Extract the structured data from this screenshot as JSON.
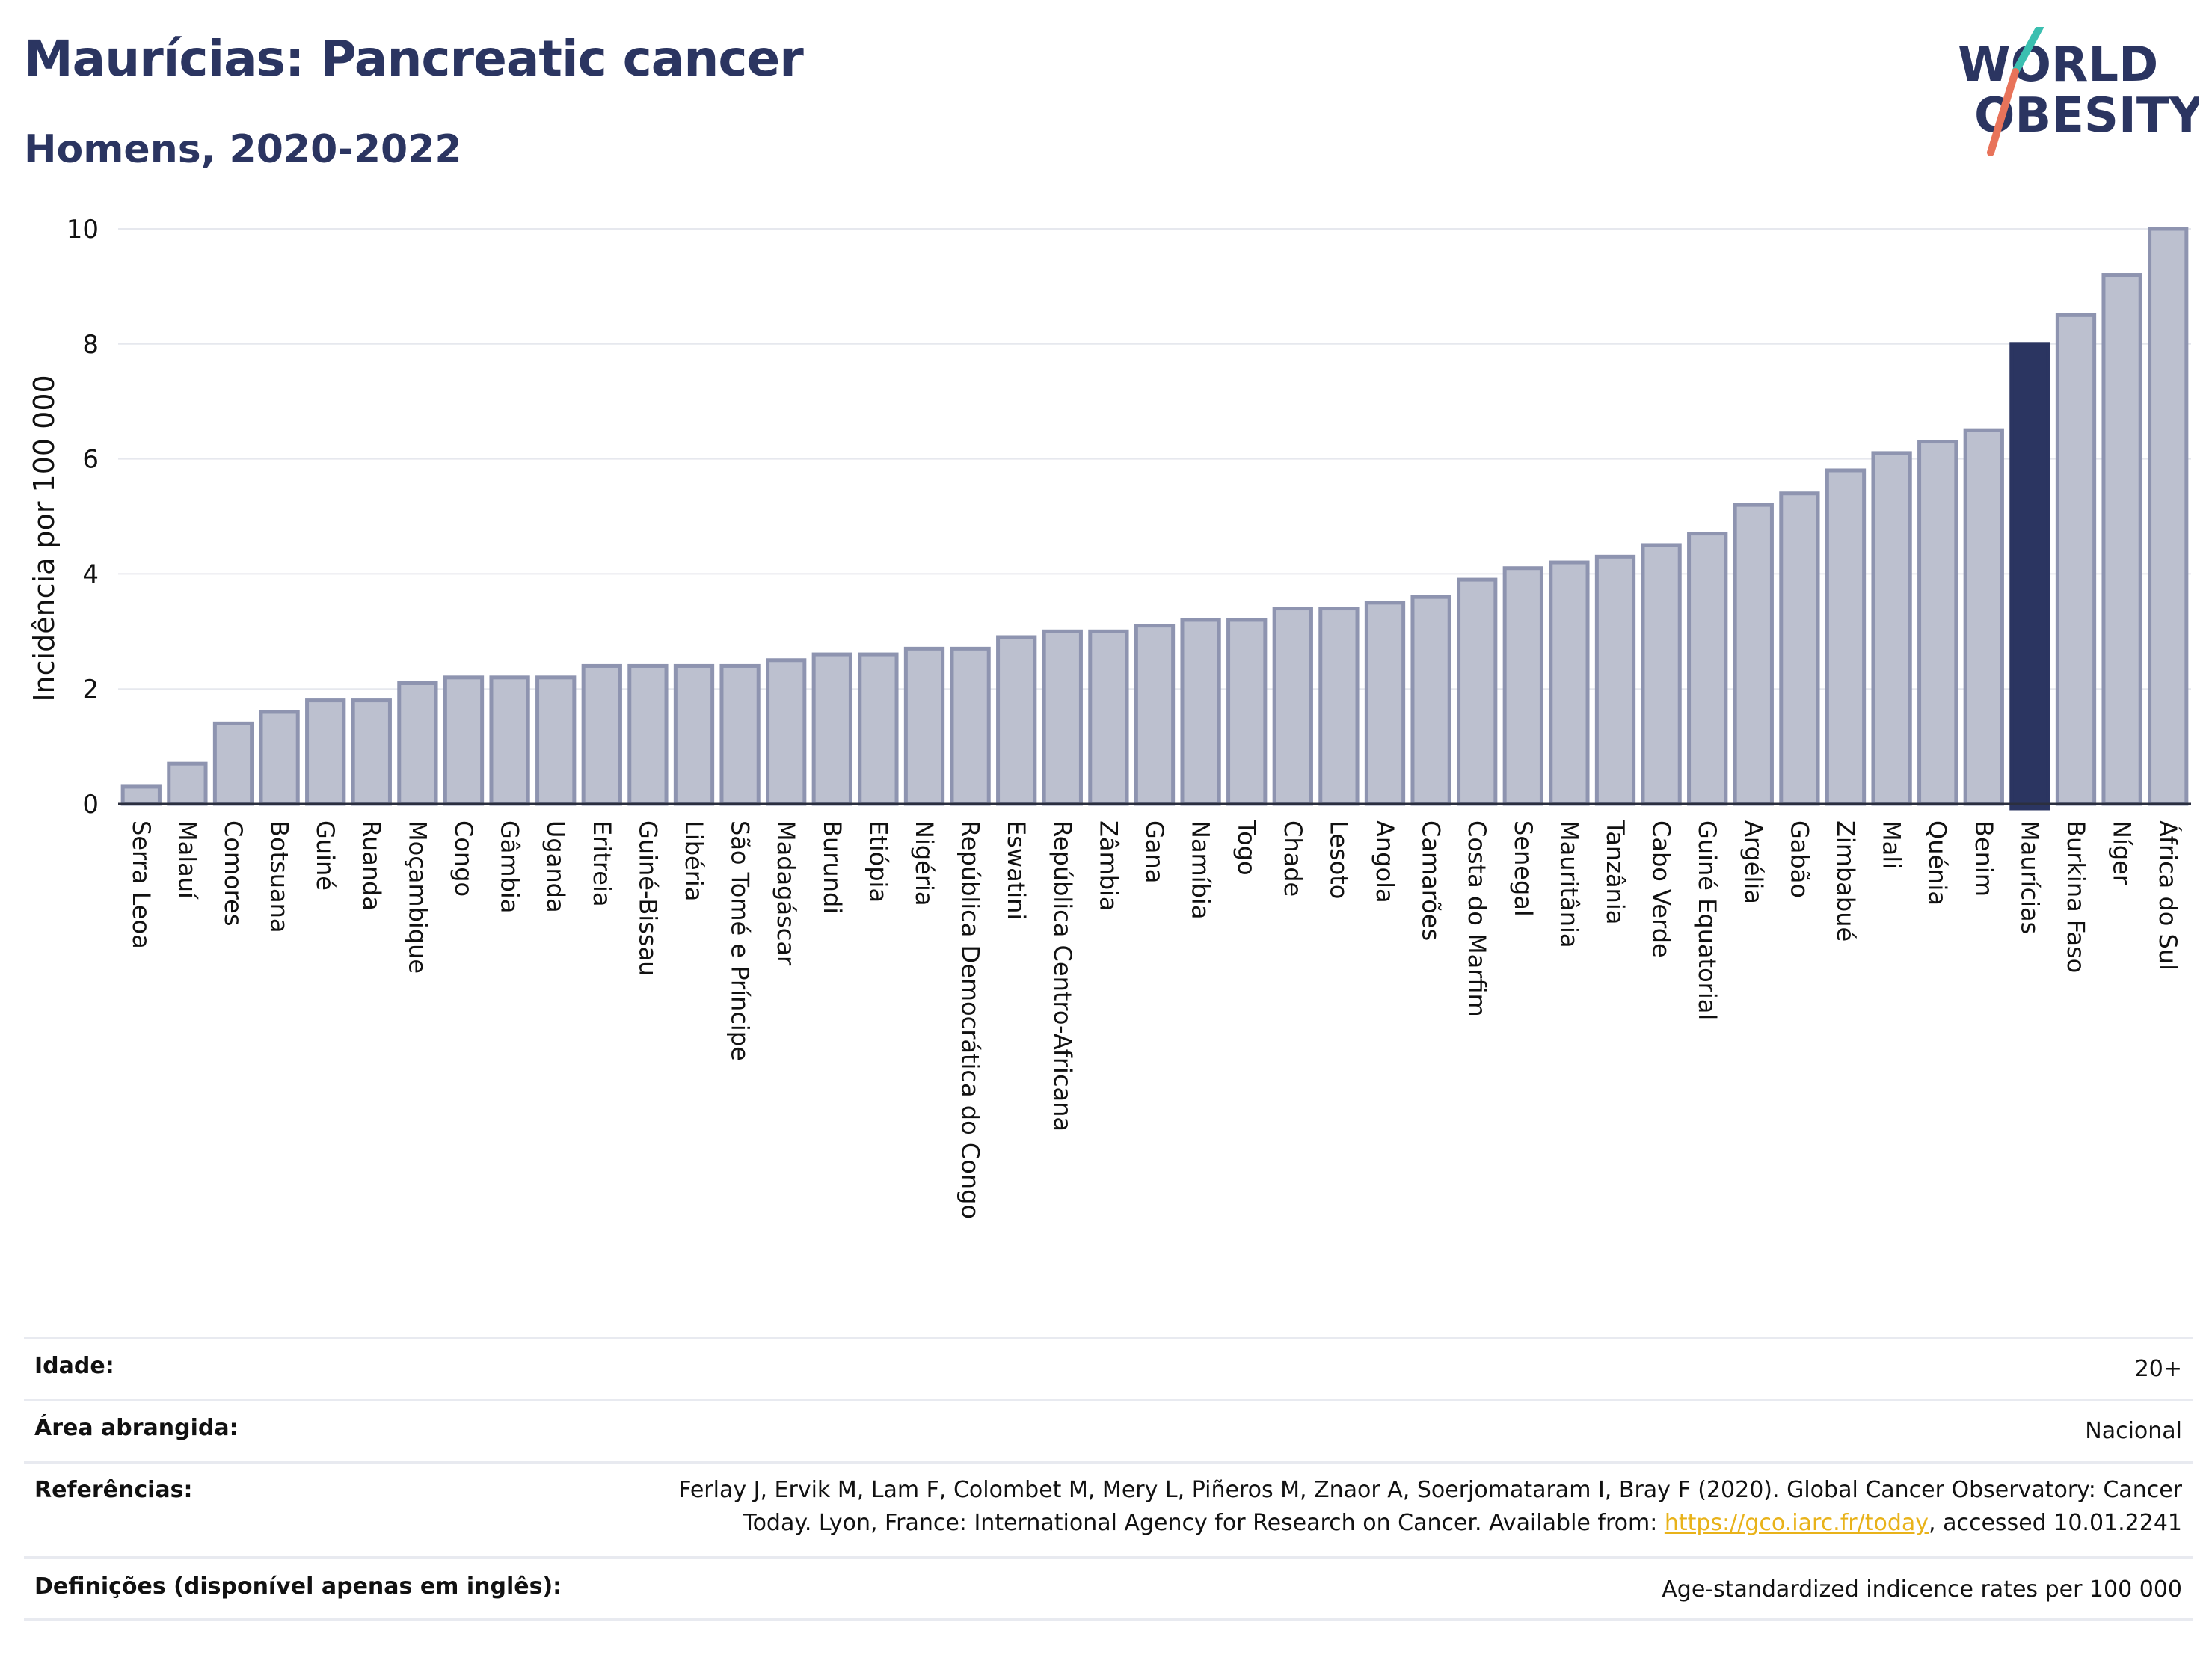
{
  "header": {
    "title": "Maurícias: Pancreatic cancer",
    "subtitle": "Homens, 2020-2022"
  },
  "logo": {
    "line1": "WORLD",
    "line2": "OBESITY",
    "accent_teal": "#3bbfb0",
    "accent_coral": "#e8735a"
  },
  "colors": {
    "bar": "#bcc0cf",
    "bar_stroke": "#8e94b0",
    "highlight": "#2b3561",
    "grid": "#e6e8ee"
  },
  "chart_data": {
    "type": "bar",
    "ylabel": "Incidência por 100 000",
    "xlabel": "",
    "ylim": [
      0,
      10
    ],
    "yticks": [
      0,
      2,
      4,
      6,
      8,
      10
    ],
    "grid": true,
    "highlight": "Maurícias",
    "categories": [
      "Serra Leoa",
      "Malauí",
      "Comores",
      "Botsuana",
      "Guiné",
      "Ruanda",
      "Moçambique",
      "Congo",
      "Gâmbia",
      "Uganda",
      "Eritreia",
      "Guiné-Bissau",
      "Libéria",
      "São Tomé e Príncipe",
      "Madagáscar",
      "Burundi",
      "Etiópia",
      "Nigéria",
      "República Democrática do Congo",
      "Eswatini",
      "República Centro-Africana",
      "Zâmbia",
      "Gana",
      "Namíbia",
      "Togo",
      "Chade",
      "Lesoto",
      "Angola",
      "Camarões",
      "Costa do Marfim",
      "Senegal",
      "Mauritânia",
      "Tanzânia",
      "Cabo Verde",
      "Guiné Equatorial",
      "Argélia",
      "Gabão",
      "Zimbabué",
      "Mali",
      "Quénia",
      "Benim",
      "Maurícias",
      "Burkina Faso",
      "Níger",
      "África do Sul"
    ],
    "values": [
      0.3,
      0.7,
      1.4,
      1.6,
      1.8,
      1.8,
      2.1,
      2.2,
      2.2,
      2.2,
      2.4,
      2.4,
      2.4,
      2.4,
      2.5,
      2.6,
      2.6,
      2.7,
      2.7,
      2.9,
      3.0,
      3.0,
      3.1,
      3.2,
      3.2,
      3.4,
      3.4,
      3.5,
      3.6,
      3.9,
      4.1,
      4.2,
      4.3,
      4.5,
      4.7,
      5.2,
      5.4,
      5.8,
      6.1,
      6.3,
      6.5,
      8.0,
      8.5,
      9.2,
      10.0
    ]
  },
  "info": {
    "age_label": "Idade:",
    "age_value": "20+",
    "area_label": "Área abrangida:",
    "area_value": "Nacional",
    "ref_label": "Referências:",
    "ref_line1": "Ferlay J, Ervik M, Lam F, Colombet M, Mery L, Piñeros M, Znaor A, Soerjomataram I, Bray F (2020). Global Cancer Observatory: Cancer",
    "ref_line2_pre": "Today. Lyon, France: International Agency for Research on Cancer. Available from: ",
    "ref_link": "https://gco.iarc.fr/today",
    "ref_line2_post": ", accessed 10.01.2241",
    "def_label": "Definições (disponível apenas em inglês):",
    "def_value": "Age-standardized indicence rates per 100 000"
  }
}
